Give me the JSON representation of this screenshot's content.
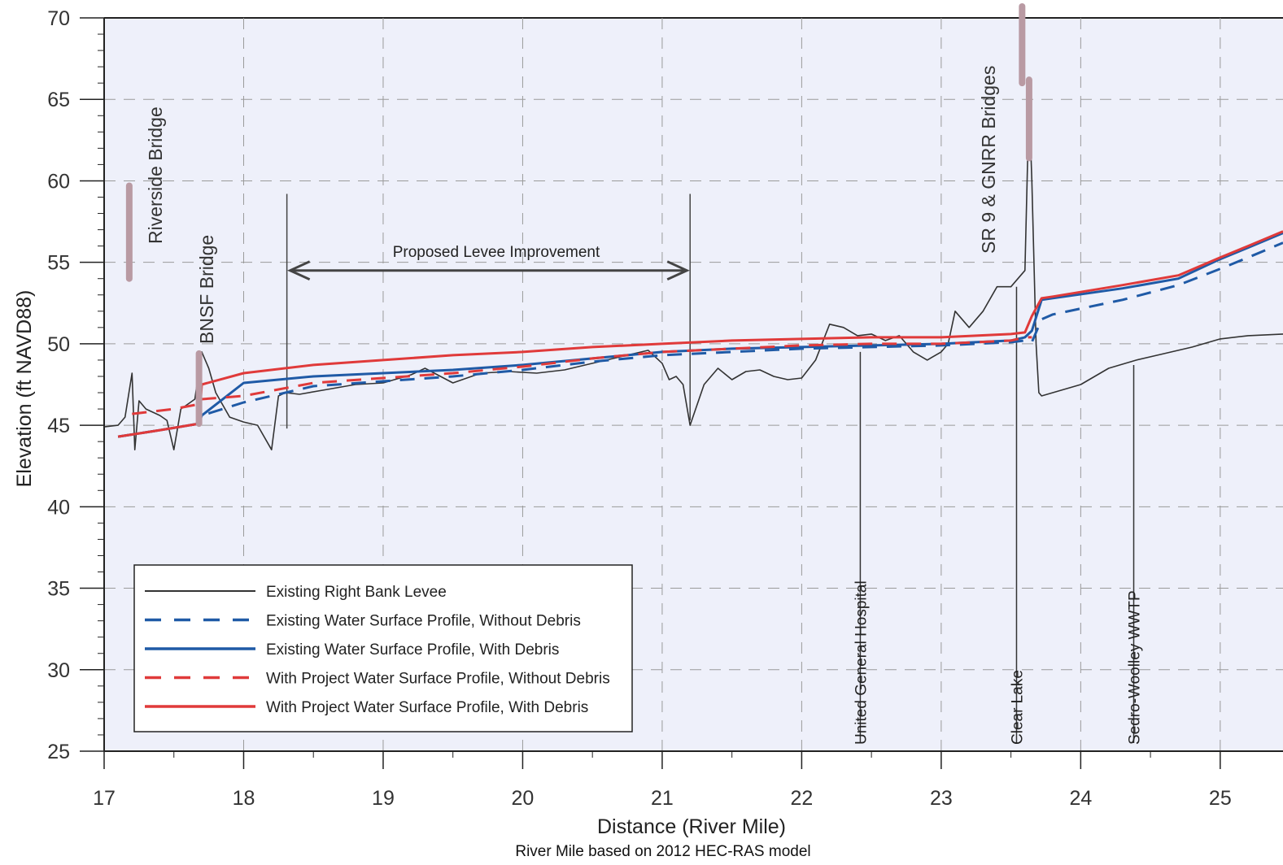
{
  "chart_data": {
    "type": "line",
    "xlabel": "Distance (River Mile)",
    "xlabel_note": "River Mile based on 2012 HEC-RAS model",
    "ylabel": "Elevation (ft NAVD88)",
    "xlim": [
      17,
      25.45
    ],
    "ylim": [
      25,
      70
    ],
    "x_ticks": [
      17,
      18,
      19,
      20,
      21,
      22,
      23,
      24,
      25
    ],
    "x_tick_labels": [
      "17",
      "18",
      "19",
      "20",
      "21",
      "22",
      "23",
      "24",
      "25"
    ],
    "y_ticks": [
      25,
      30,
      35,
      40,
      45,
      50,
      55,
      60,
      65,
      70
    ],
    "y_tick_labels": [
      "25",
      "30",
      "35",
      "40",
      "45",
      "50",
      "55",
      "60",
      "65",
      "70"
    ],
    "grid": "dashed horizontal and vertical",
    "legend_position": "bottom-left",
    "series": [
      {
        "name": "Existing Right Bank Levee",
        "color": "#333333",
        "style": "solid",
        "x": [
          17.0,
          17.1,
          17.15,
          17.2,
          17.22,
          17.25,
          17.3,
          17.35,
          17.4,
          17.45,
          17.5,
          17.55,
          17.6,
          17.65,
          17.7,
          17.75,
          17.8,
          17.9,
          18.0,
          18.1,
          18.2,
          18.25,
          18.3,
          18.4,
          18.6,
          18.8,
          19.0,
          19.2,
          19.3,
          19.5,
          19.7,
          19.9,
          20.1,
          20.3,
          20.5,
          20.7,
          20.9,
          21.0,
          21.05,
          21.1,
          21.15,
          21.2,
          21.3,
          21.4,
          21.5,
          21.6,
          21.7,
          21.8,
          21.9,
          22.0,
          22.1,
          22.2,
          22.3,
          22.4,
          22.5,
          22.6,
          22.7,
          22.8,
          22.9,
          23.0,
          23.05,
          23.1,
          23.2,
          23.3,
          23.4,
          23.5,
          23.55,
          23.6,
          23.63,
          23.65,
          23.68,
          23.7,
          23.72,
          24.0,
          24.2,
          24.4,
          24.6,
          24.8,
          25.0,
          25.2,
          25.45
        ],
        "y": [
          44.9,
          45.0,
          45.5,
          48.2,
          43.5,
          46.5,
          46.0,
          45.8,
          45.6,
          45.3,
          43.5,
          46.0,
          46.3,
          46.6,
          49.5,
          48.5,
          47.0,
          45.5,
          45.2,
          45.0,
          43.5,
          46.8,
          47.0,
          46.9,
          47.2,
          47.5,
          47.6,
          48.1,
          48.5,
          47.6,
          48.2,
          48.3,
          48.2,
          48.4,
          48.8,
          49.2,
          49.6,
          48.8,
          47.8,
          48.0,
          47.5,
          45.0,
          47.5,
          48.5,
          47.8,
          48.3,
          48.4,
          48.0,
          47.8,
          47.9,
          49.0,
          51.2,
          51.0,
          50.5,
          50.6,
          50.2,
          50.5,
          49.5,
          49.0,
          49.5,
          50.0,
          52.0,
          51.0,
          52.0,
          53.5,
          53.5,
          54.0,
          54.5,
          65.0,
          60.0,
          50.0,
          47.0,
          46.8,
          47.5,
          48.5,
          49.0,
          49.4,
          49.8,
          50.3,
          50.5,
          50.6
        ]
      },
      {
        "name": "Existing Water Surface Profile, Without Debris",
        "color": "#1f5aa6",
        "style": "dashed",
        "x": [
          17.1,
          17.4,
          17.68,
          17.7,
          18.0,
          18.5,
          19.0,
          19.5,
          20.0,
          20.5,
          21.0,
          21.5,
          22.0,
          22.5,
          23.0,
          23.5,
          23.6,
          23.65,
          23.72,
          23.8,
          24.3,
          24.7,
          25.0,
          25.2,
          25.45
        ],
        "y": [
          44.3,
          44.7,
          45.1,
          45.6,
          46.4,
          47.4,
          47.7,
          48.0,
          48.4,
          48.9,
          49.3,
          49.5,
          49.7,
          49.8,
          49.9,
          50.1,
          50.2,
          50.1,
          51.5,
          51.8,
          52.7,
          53.6,
          54.6,
          55.3,
          56.2
        ]
      },
      {
        "name": "Existing Water Surface Profile, With Debris",
        "color": "#1f5aa6",
        "style": "solid",
        "x": [
          17.1,
          17.4,
          17.68,
          17.7,
          18.0,
          18.5,
          19.0,
          19.5,
          20.0,
          20.5,
          21.0,
          21.5,
          22.0,
          22.5,
          23.0,
          23.5,
          23.6,
          23.65,
          23.72,
          23.8,
          24.3,
          24.7,
          25.0,
          25.2,
          25.45
        ],
        "y": [
          44.3,
          44.7,
          45.1,
          45.6,
          47.6,
          48.0,
          48.2,
          48.4,
          48.7,
          49.1,
          49.5,
          49.7,
          49.8,
          49.9,
          50.0,
          50.2,
          50.4,
          50.8,
          52.7,
          52.8,
          53.4,
          54.0,
          55.2,
          55.9,
          56.8
        ]
      },
      {
        "name": "With Project Water Surface Profile, Without Debris",
        "color": "#e03a3a",
        "style": "dashed",
        "x": [
          17.2,
          17.5,
          17.68,
          17.7,
          18.0,
          18.5,
          19.0,
          19.5,
          20.0,
          20.5,
          21.0,
          21.5,
          22.0,
          22.5,
          23.0,
          23.5,
          23.6,
          23.65
        ],
        "y": [
          45.7,
          46.0,
          46.3,
          46.6,
          46.8,
          47.6,
          47.9,
          48.2,
          48.6,
          49.1,
          49.5,
          49.7,
          49.9,
          50.0,
          50.0,
          50.2,
          50.4,
          50.4
        ]
      },
      {
        "name": "With Project Water Surface Profile, With Debris",
        "color": "#e03a3a",
        "style": "solid",
        "x": [
          17.1,
          17.4,
          17.68,
          17.7,
          18.0,
          18.5,
          19.0,
          19.5,
          20.0,
          20.5,
          21.0,
          21.5,
          22.0,
          22.5,
          23.0,
          23.5,
          23.6,
          23.65,
          23.72,
          23.8,
          24.3,
          24.7,
          25.0,
          25.2,
          25.45
        ],
        "y": [
          44.3,
          44.7,
          45.1,
          47.5,
          48.2,
          48.7,
          49.0,
          49.3,
          49.5,
          49.8,
          50.0,
          50.2,
          50.3,
          50.4,
          50.4,
          50.6,
          50.7,
          51.7,
          52.8,
          52.9,
          53.6,
          54.2,
          55.3,
          56.0,
          56.9
        ]
      }
    ],
    "bridges": [
      {
        "name": "Riverside Bridge",
        "x": 17.18,
        "y_low": 54.0,
        "y_high": 59.7
      },
      {
        "name": "BNSF Bridge",
        "x": 17.68,
        "y_low": 45.1,
        "y_high": 49.4
      },
      {
        "name": "SR 9 & GNRR Bridges",
        "x": 23.58,
        "y_low": 66.0,
        "y_high": 70.7
      },
      {
        "name": "SR 9 & GNRR Bridges (2)",
        "x": 23.63,
        "y_low": 61.4,
        "y_high": 66.2
      }
    ],
    "landmarks": [
      {
        "label": "United General Hospital",
        "x": 22.42,
        "y_top": 49.5
      },
      {
        "label": "Clear Lake",
        "x": 23.54,
        "y_top": 53.5
      },
      {
        "label": "Sedro-Woolley WWTP",
        "x": 24.38,
        "y_top": 48.7
      }
    ],
    "range_annotation": {
      "label": "Proposed Levee Improvement",
      "x_start": 18.31,
      "x_end": 21.2,
      "y_arrow": 54.5,
      "y_bar_top": 59.2
    },
    "bridge_labels": {
      "riverside": "Riverside Bridge",
      "bnsf": "BNSF Bridge",
      "sr9": "SR 9 & GNRR Bridges"
    }
  }
}
